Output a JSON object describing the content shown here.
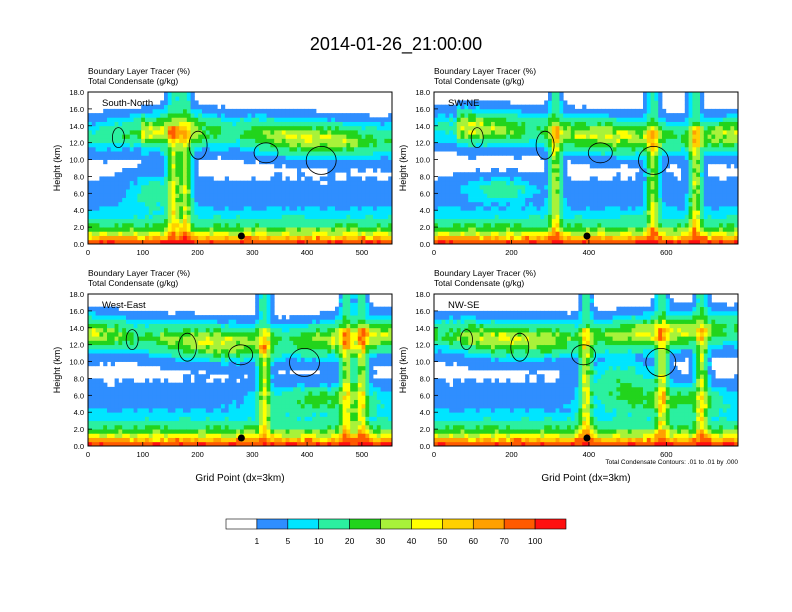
{
  "title": "2014-01-26_21:00:00",
  "panel_header": {
    "line1": "Boundary Layer Tracer   (%)",
    "line2": "Total Condensate   (g/kg)"
  },
  "footnote": "Total Condensate Contours: .01 to .01 by .000",
  "colors": {
    "bins": [
      "#ffffff",
      "#2f8eff",
      "#00e5ff",
      "#2bf0a0",
      "#22d41c",
      "#a8f23a",
      "#ffff00",
      "#ffd000",
      "#ffa000",
      "#ff5a00",
      "#ff1010"
    ],
    "contour": "#000000",
    "marker": "#000000"
  },
  "chart_data": [
    {
      "type": "heatmap",
      "label": "South-North",
      "ylabel": "Height (km)",
      "xlabel": "",
      "xlim": [
        0,
        555
      ],
      "ylim": [
        0,
        18
      ],
      "xticks": [
        "0",
        "100",
        "200",
        "300",
        "400",
        "500"
      ],
      "xtick_values": [
        0,
        100,
        200,
        300,
        400,
        500
      ],
      "yticks": [
        "0.0",
        "2.0",
        "4.0",
        "6.0",
        "8.0",
        "10.0",
        "12.0",
        "14.0",
        "16.0",
        "18.0"
      ],
      "marker_x": 280
    },
    {
      "type": "heatmap",
      "label": "SW-NE",
      "ylabel": "Height (km)",
      "xlabel": "",
      "xlim": [
        0,
        785
      ],
      "ylim": [
        0,
        18
      ],
      "xticks": [
        "0",
        "200",
        "400",
        "600"
      ],
      "xtick_values": [
        0,
        200,
        400,
        600
      ],
      "yticks": [
        "0.0",
        "2.0",
        "4.0",
        "6.0",
        "8.0",
        "10.0",
        "12.0",
        "14.0",
        "16.0",
        "18.0"
      ],
      "marker_x": 395
    },
    {
      "type": "heatmap",
      "label": "West-East",
      "ylabel": "Height (km)",
      "xlabel": "Grid Point (dx=3km)",
      "xlim": [
        0,
        555
      ],
      "ylim": [
        0,
        18
      ],
      "xticks": [
        "0",
        "100",
        "200",
        "300",
        "400",
        "500"
      ],
      "xtick_values": [
        0,
        100,
        200,
        300,
        400,
        500
      ],
      "yticks": [
        "0.0",
        "2.0",
        "4.0",
        "6.0",
        "8.0",
        "10.0",
        "12.0",
        "14.0",
        "16.0",
        "18.0"
      ],
      "marker_x": 280
    },
    {
      "type": "heatmap",
      "label": "NW-SE",
      "ylabel": "Height (km)",
      "xlabel": "Grid Point (dx=3km)",
      "xlim": [
        0,
        785
      ],
      "ylim": [
        0,
        18
      ],
      "xticks": [
        "0",
        "200",
        "400",
        "600"
      ],
      "xtick_values": [
        0,
        200,
        400,
        600
      ],
      "yticks": [
        "0.0",
        "2.0",
        "4.0",
        "6.0",
        "8.0",
        "10.0",
        "12.0",
        "14.0",
        "16.0",
        "18.0"
      ],
      "marker_x": 395
    }
  ],
  "colorbar": {
    "levels": [
      "1",
      "5",
      "10",
      "20",
      "30",
      "40",
      "50",
      "60",
      "70",
      "100"
    ]
  }
}
